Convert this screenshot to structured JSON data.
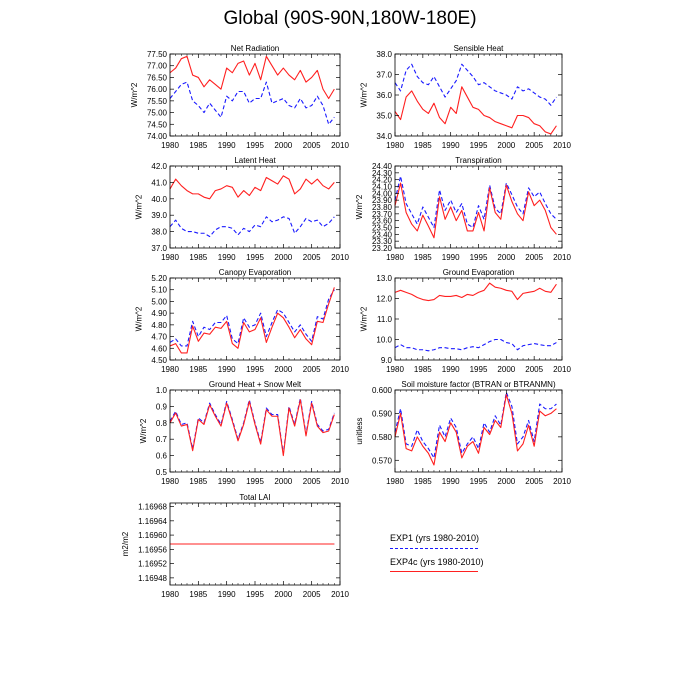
{
  "title": "Global (90S-90N,180W-180E)",
  "colors": {
    "exp1": "#1a1aff",
    "exp4c": "#ff2020"
  },
  "legend": {
    "exp1": "EXP1 (yrs 1980-2010)",
    "exp4c": "EXP4c (yrs 1980-2010)"
  },
  "chart_data": [
    {
      "type": "line",
      "title": "Net Radiation",
      "ylabel": "W/m^2",
      "xlim": [
        1980,
        2010
      ],
      "xticks": [
        1980,
        1985,
        1990,
        1995,
        2000,
        2005,
        2010
      ],
      "ylim": [
        74.0,
        77.5
      ],
      "yticks": [
        "74.00",
        "74.50",
        "75.00",
        "75.50",
        "76.00",
        "76.50",
        "77.00",
        "77.50"
      ],
      "x": [
        1980,
        1981,
        1982,
        1983,
        1984,
        1985,
        1986,
        1987,
        1988,
        1989,
        1990,
        1991,
        1992,
        1993,
        1994,
        1995,
        1996,
        1997,
        1998,
        1999,
        2000,
        2001,
        2002,
        2003,
        2004,
        2005,
        2006,
        2007,
        2008,
        2009
      ],
      "series": [
        {
          "name": "EXP1",
          "style": "dashed",
          "values": [
            75.6,
            75.9,
            76.2,
            76.3,
            75.5,
            75.3,
            75.0,
            75.4,
            75.1,
            74.8,
            75.7,
            75.5,
            75.9,
            75.9,
            75.4,
            75.6,
            75.6,
            76.3,
            75.4,
            75.5,
            75.6,
            75.3,
            75.2,
            75.6,
            75.2,
            75.3,
            75.7,
            75.3,
            74.5,
            74.8
          ]
        },
        {
          "name": "EXP4c",
          "style": "solid",
          "values": [
            76.7,
            76.9,
            77.3,
            77.4,
            76.6,
            76.5,
            76.1,
            76.4,
            76.2,
            76.0,
            76.9,
            76.7,
            77.1,
            77.2,
            76.6,
            77.1,
            76.4,
            77.4,
            77.0,
            76.6,
            76.9,
            76.6,
            76.4,
            76.8,
            76.3,
            76.5,
            76.8,
            76.0,
            75.6,
            76.0
          ]
        }
      ]
    },
    {
      "type": "line",
      "title": "Sensible Heat",
      "ylabel": "W/m^2",
      "xlim": [
        1980,
        2010
      ],
      "xticks": [
        1980,
        1985,
        1990,
        1995,
        2000,
        2005,
        2010
      ],
      "ylim": [
        34.0,
        38.0
      ],
      "yticks": [
        "34.0",
        "35.0",
        "36.0",
        "37.0",
        "38.0"
      ],
      "x": [
        1980,
        1981,
        1982,
        1983,
        1984,
        1985,
        1986,
        1987,
        1988,
        1989,
        1990,
        1991,
        1992,
        1993,
        1994,
        1995,
        1996,
        1997,
        1998,
        1999,
        2000,
        2001,
        2002,
        2003,
        2004,
        2005,
        2006,
        2007,
        2008,
        2009
      ],
      "series": [
        {
          "name": "EXP1",
          "style": "dashed",
          "values": [
            36.6,
            36.2,
            37.2,
            37.5,
            36.9,
            36.6,
            36.5,
            36.9,
            36.4,
            35.9,
            36.3,
            36.7,
            37.5,
            37.2,
            36.9,
            36.5,
            36.6,
            36.4,
            36.2,
            36.1,
            36.0,
            35.8,
            36.4,
            36.2,
            36.3,
            36.1,
            35.9,
            35.8,
            35.5,
            35.9
          ]
        },
        {
          "name": "EXP4c",
          "style": "solid",
          "values": [
            35.2,
            34.8,
            35.9,
            36.2,
            35.7,
            35.3,
            35.1,
            35.6,
            34.9,
            34.6,
            35.4,
            35.1,
            36.4,
            35.9,
            35.4,
            35.3,
            35.0,
            34.9,
            34.7,
            34.6,
            34.5,
            34.4,
            35.0,
            35.0,
            34.9,
            34.6,
            34.5,
            34.2,
            34.1,
            34.5
          ]
        }
      ]
    },
    {
      "type": "line",
      "title": "Latent Heat",
      "ylabel": "W/m^2",
      "xlim": [
        1980,
        2010
      ],
      "xticks": [
        1980,
        1985,
        1990,
        1995,
        2000,
        2005,
        2010
      ],
      "ylim": [
        37.0,
        42.0
      ],
      "yticks": [
        "37.0",
        "38.0",
        "39.0",
        "40.0",
        "41.0",
        "42.0"
      ],
      "x": [
        1980,
        1981,
        1982,
        1983,
        1984,
        1985,
        1986,
        1987,
        1988,
        1989,
        1990,
        1991,
        1992,
        1993,
        1994,
        1995,
        1996,
        1997,
        1998,
        1999,
        2000,
        2001,
        2002,
        2003,
        2004,
        2005,
        2006,
        2007,
        2008,
        2009
      ],
      "series": [
        {
          "name": "EXP1",
          "style": "dashed",
          "values": [
            38.3,
            38.7,
            38.2,
            38.0,
            38.0,
            37.9,
            37.9,
            37.7,
            38.1,
            38.3,
            38.3,
            38.2,
            37.8,
            38.2,
            38.0,
            38.4,
            38.3,
            38.9,
            38.6,
            38.7,
            38.9,
            38.8,
            37.9,
            38.3,
            38.8,
            38.6,
            38.7,
            38.3,
            38.5,
            38.9
          ]
        },
        {
          "name": "EXP4c",
          "style": "solid",
          "values": [
            40.6,
            41.2,
            40.8,
            40.5,
            40.3,
            40.3,
            40.1,
            40.0,
            40.5,
            40.6,
            40.8,
            40.7,
            40.1,
            40.5,
            40.2,
            40.7,
            40.5,
            41.3,
            41.1,
            40.9,
            41.4,
            41.2,
            40.3,
            40.6,
            41.2,
            40.9,
            41.2,
            40.8,
            40.6,
            41.0
          ]
        }
      ]
    },
    {
      "type": "line",
      "title": "Transpiration",
      "ylabel": "W/m^2",
      "xlim": [
        1980,
        2010
      ],
      "xticks": [
        1980,
        1985,
        1990,
        1995,
        2000,
        2005,
        2010
      ],
      "ylim": [
        23.2,
        24.4
      ],
      "yticks": [
        "23.20",
        "23.30",
        "23.40",
        "23.50",
        "23.60",
        "23.70",
        "23.80",
        "23.90",
        "24.00",
        "24.10",
        "24.20",
        "24.30",
        "24.40"
      ],
      "x": [
        1980,
        1981,
        1982,
        1983,
        1984,
        1985,
        1986,
        1987,
        1988,
        1989,
        1990,
        1991,
        1992,
        1993,
        1994,
        1995,
        1996,
        1997,
        1998,
        1999,
        2000,
        2001,
        2002,
        2003,
        2004,
        2005,
        2006,
        2007,
        2008,
        2009
      ],
      "series": [
        {
          "name": "EXP1",
          "style": "dashed",
          "values": [
            23.9,
            24.25,
            23.85,
            23.7,
            23.55,
            23.8,
            23.65,
            23.5,
            24.05,
            23.75,
            23.9,
            23.72,
            23.85,
            23.55,
            23.5,
            23.82,
            23.62,
            24.12,
            23.78,
            23.7,
            24.15,
            23.98,
            23.8,
            23.7,
            24.08,
            23.95,
            24.02,
            23.85,
            23.7,
            23.62
          ]
        },
        {
          "name": "EXP4c",
          "style": "solid",
          "values": [
            23.82,
            24.15,
            23.72,
            23.55,
            23.45,
            23.68,
            23.52,
            23.35,
            23.95,
            23.62,
            23.8,
            23.6,
            23.75,
            23.45,
            23.45,
            23.72,
            23.45,
            24.08,
            23.72,
            23.62,
            24.12,
            23.88,
            23.7,
            23.6,
            24.02,
            23.82,
            23.9,
            23.75,
            23.5,
            23.4
          ]
        }
      ]
    },
    {
      "type": "line",
      "title": "Canopy Evaporation",
      "ylabel": "W/m^2",
      "xlim": [
        1980,
        2010
      ],
      "xticks": [
        1980,
        1985,
        1990,
        1995,
        2000,
        2005,
        2010
      ],
      "ylim": [
        4.5,
        5.2
      ],
      "yticks": [
        "4.50",
        "4.60",
        "4.70",
        "4.80",
        "4.90",
        "5.00",
        "5.10",
        "5.20"
      ],
      "x": [
        1980,
        1981,
        1982,
        1983,
        1984,
        1985,
        1986,
        1987,
        1988,
        1989,
        1990,
        1991,
        1992,
        1993,
        1994,
        1995,
        1996,
        1997,
        1998,
        1999,
        2000,
        2001,
        2002,
        2003,
        2004,
        2005,
        2006,
        2007,
        2008,
        2009
      ],
      "series": [
        {
          "name": "EXP1",
          "style": "dashed",
          "values": [
            4.65,
            4.68,
            4.62,
            4.62,
            4.83,
            4.7,
            4.78,
            4.76,
            4.82,
            4.82,
            4.88,
            4.68,
            4.64,
            4.86,
            4.78,
            4.8,
            4.9,
            4.7,
            4.82,
            4.93,
            4.9,
            4.82,
            4.74,
            4.8,
            4.72,
            4.66,
            4.87,
            4.85,
            5.02,
            5.1
          ]
        },
        {
          "name": "EXP4c",
          "style": "solid",
          "values": [
            4.62,
            4.64,
            4.56,
            4.56,
            4.79,
            4.66,
            4.73,
            4.72,
            4.78,
            4.77,
            4.83,
            4.64,
            4.6,
            4.82,
            4.74,
            4.76,
            4.86,
            4.65,
            4.78,
            4.9,
            4.86,
            4.78,
            4.69,
            4.76,
            4.68,
            4.63,
            4.83,
            4.82,
            4.98,
            5.12
          ]
        }
      ]
    },
    {
      "type": "line",
      "title": "Ground Evaporation",
      "ylabel": "W/m^2",
      "xlim": [
        1980,
        2010
      ],
      "xticks": [
        1980,
        1985,
        1990,
        1995,
        2000,
        2005,
        2010
      ],
      "ylim": [
        9.0,
        13.0
      ],
      "yticks": [
        "9.0",
        "10.0",
        "11.0",
        "12.0",
        "13.0"
      ],
      "x": [
        1980,
        1981,
        1982,
        1983,
        1984,
        1985,
        1986,
        1987,
        1988,
        1989,
        1990,
        1991,
        1992,
        1993,
        1994,
        1995,
        1996,
        1997,
        1998,
        1999,
        2000,
        2001,
        2002,
        2003,
        2004,
        2005,
        2006,
        2007,
        2008,
        2009
      ],
      "series": [
        {
          "name": "EXP1",
          "style": "dashed",
          "values": [
            9.6,
            9.75,
            9.6,
            9.6,
            9.5,
            9.5,
            9.45,
            9.5,
            9.6,
            9.6,
            9.55,
            9.55,
            9.5,
            9.6,
            9.65,
            9.6,
            9.75,
            9.9,
            10.0,
            10.0,
            9.85,
            9.8,
            9.5,
            9.7,
            9.75,
            9.8,
            9.75,
            9.7,
            9.7,
            9.85
          ]
        },
        {
          "name": "EXP4c",
          "style": "solid",
          "values": [
            12.3,
            12.4,
            12.3,
            12.2,
            12.05,
            11.95,
            11.9,
            11.95,
            12.15,
            12.1,
            12.1,
            12.15,
            12.05,
            12.2,
            12.15,
            12.3,
            12.4,
            12.75,
            12.55,
            12.5,
            12.4,
            12.35,
            11.95,
            12.25,
            12.3,
            12.35,
            12.5,
            12.35,
            12.3,
            12.7
          ]
        }
      ]
    },
    {
      "type": "line",
      "title": "Ground Heat + Snow Melt",
      "ylabel": "W/m^2",
      "xlim": [
        1980,
        2010
      ],
      "xticks": [
        1980,
        1985,
        1990,
        1995,
        2000,
        2005,
        2010
      ],
      "ylim": [
        0.5,
        1.0
      ],
      "yticks": [
        "0.5",
        "0.6",
        "0.7",
        "0.8",
        "0.9",
        "1.0"
      ],
      "x": [
        1980,
        1981,
        1982,
        1983,
        1984,
        1985,
        1986,
        1987,
        1988,
        1989,
        1990,
        1991,
        1992,
        1993,
        1994,
        1995,
        1996,
        1997,
        1998,
        1999,
        2000,
        2001,
        2002,
        2003,
        2004,
        2005,
        2006,
        2007,
        2008,
        2009
      ],
      "series": [
        {
          "name": "EXP1",
          "style": "dashed",
          "values": [
            0.81,
            0.87,
            0.79,
            0.8,
            0.64,
            0.83,
            0.8,
            0.92,
            0.85,
            0.79,
            0.93,
            0.82,
            0.7,
            0.8,
            0.94,
            0.8,
            0.68,
            0.89,
            0.85,
            0.85,
            0.61,
            0.9,
            0.79,
            0.95,
            0.73,
            0.93,
            0.79,
            0.75,
            0.76,
            0.86
          ]
        },
        {
          "name": "EXP4c",
          "style": "solid",
          "values": [
            0.8,
            0.86,
            0.78,
            0.79,
            0.63,
            0.82,
            0.79,
            0.91,
            0.84,
            0.78,
            0.92,
            0.81,
            0.69,
            0.79,
            0.93,
            0.79,
            0.67,
            0.88,
            0.84,
            0.84,
            0.6,
            0.89,
            0.78,
            0.94,
            0.72,
            0.92,
            0.78,
            0.74,
            0.75,
            0.85
          ]
        }
      ]
    },
    {
      "type": "line",
      "title": "Soil moisture factor (BTRAN or BTRANMN)",
      "ylabel": "unitless",
      "xlim": [
        1980,
        2010
      ],
      "xticks": [
        1980,
        1985,
        1990,
        1995,
        2000,
        2005,
        2010
      ],
      "ylim": [
        0.565,
        0.6
      ],
      "yticks": [
        "0.570",
        "0.580",
        "0.590",
        "0.600"
      ],
      "x": [
        1980,
        1981,
        1982,
        1983,
        1984,
        1985,
        1986,
        1987,
        1988,
        1989,
        1990,
        1991,
        1992,
        1993,
        1994,
        1995,
        1996,
        1997,
        1998,
        1999,
        2000,
        2001,
        2002,
        2003,
        2004,
        2005,
        2006,
        2007,
        2008,
        2009
      ],
      "series": [
        {
          "name": "EXP1",
          "style": "dashed",
          "values": [
            0.582,
            0.592,
            0.577,
            0.576,
            0.583,
            0.578,
            0.575,
            0.571,
            0.585,
            0.58,
            0.588,
            0.584,
            0.573,
            0.577,
            0.58,
            0.575,
            0.586,
            0.582,
            0.589,
            0.585,
            0.599,
            0.593,
            0.577,
            0.58,
            0.587,
            0.578,
            0.594,
            0.592,
            0.592,
            0.594
          ]
        },
        {
          "name": "EXP4c",
          "style": "solid",
          "values": [
            0.58,
            0.59,
            0.575,
            0.574,
            0.58,
            0.576,
            0.573,
            0.568,
            0.582,
            0.578,
            0.586,
            0.582,
            0.571,
            0.576,
            0.578,
            0.573,
            0.584,
            0.581,
            0.587,
            0.584,
            0.598,
            0.59,
            0.574,
            0.577,
            0.585,
            0.576,
            0.591,
            0.589,
            0.59,
            0.592
          ]
        }
      ]
    },
    {
      "type": "line",
      "title": "Total LAI",
      "ylabel": "m2/m2",
      "xlim": [
        1980,
        2010
      ],
      "xticks": [
        1980,
        1985,
        1990,
        1995,
        2000,
        2005,
        2010
      ],
      "ylim": [
        1.16946,
        1.16969
      ],
      "yticks": [
        "1.16948",
        "1.16952",
        "1.16956",
        "1.16960",
        "1.16964",
        "1.16968"
      ],
      "x": [
        1980,
        2009
      ],
      "series": [
        {
          "name": "EXP1",
          "style": "dashed",
          "values": [
            1.169575,
            1.169575
          ]
        },
        {
          "name": "EXP4c",
          "style": "solid",
          "values": [
            1.169575,
            1.169575
          ]
        }
      ]
    }
  ]
}
